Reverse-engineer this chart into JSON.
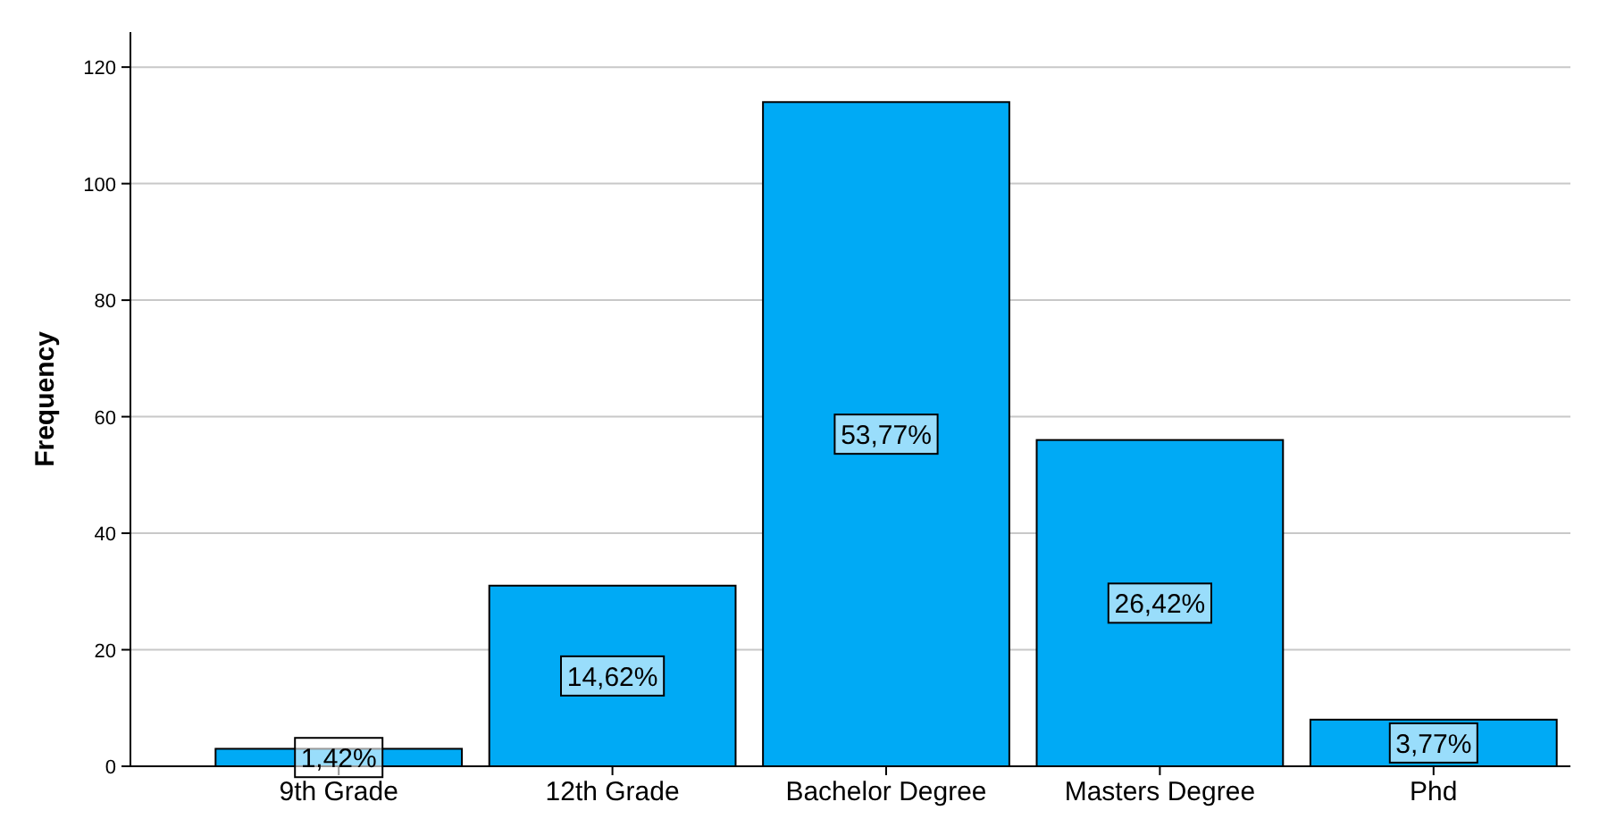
{
  "chart_data": {
    "type": "bar",
    "ylabel": "Frequency",
    "categories": [
      "9th Grade",
      "12th Grade",
      "Bachelor Degree",
      "Masters Degree",
      "Phd"
    ],
    "values": [
      3,
      31,
      114,
      56,
      8
    ],
    "color": "#00aaf5",
    "annotations": [
      "1,42%",
      "14,62%",
      "53,77%",
      "26,42%",
      "3,77%"
    ],
    "ylim": [
      0,
      126
    ],
    "yticks": [
      0,
      20,
      40,
      60,
      80,
      100,
      120
    ],
    "grid": "y"
  }
}
